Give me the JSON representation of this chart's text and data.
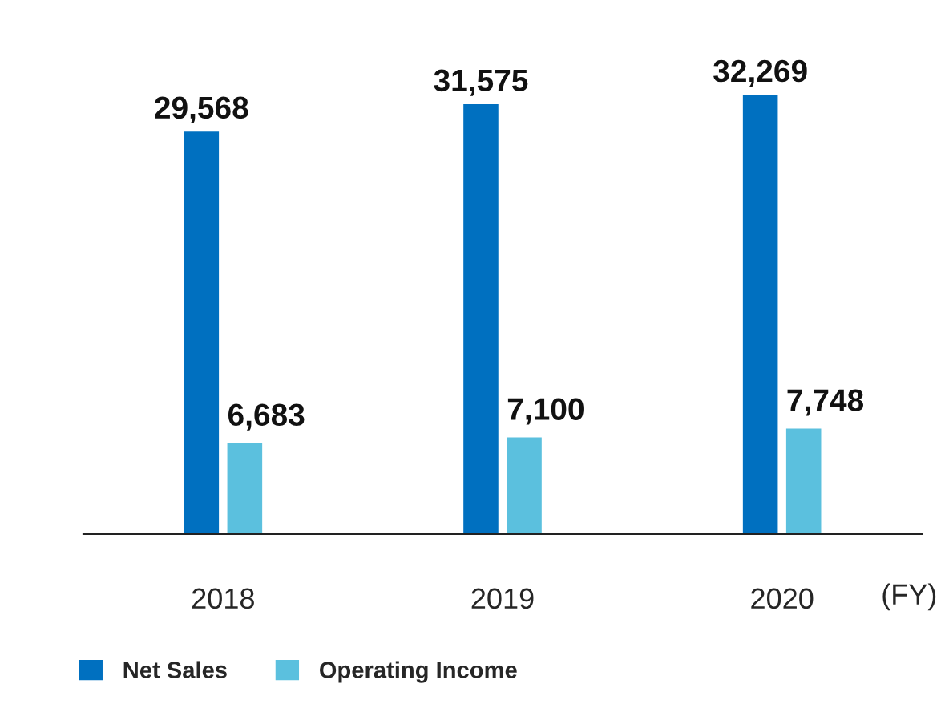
{
  "chart_data": {
    "type": "bar",
    "categories": [
      "2018",
      "2019",
      "2020"
    ],
    "xlabel": "(FY)",
    "series": [
      {
        "name": "Net Sales",
        "color": "#0070c0",
        "values": [
          29568,
          31575,
          32269
        ],
        "value_labels": [
          "29,568",
          "31,575",
          "32,269"
        ]
      },
      {
        "name": "Operating Income",
        "color": "#5bc0de",
        "values": [
          6683,
          7100,
          7748
        ],
        "value_labels": [
          "6,683",
          "7,100",
          "7,748"
        ]
      }
    ],
    "tick_labels": "x",
    "grid": false,
    "legend": "bottom left"
  }
}
